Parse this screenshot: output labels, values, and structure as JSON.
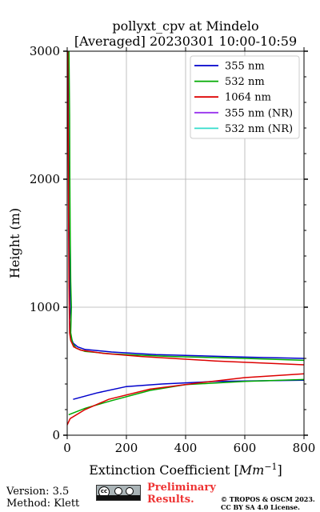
{
  "chart_data": {
    "type": "line",
    "title": "pollyxt_cpv at Mindelo",
    "subtitle": "[Averaged] 20230301 10:00-10:59",
    "xlabel": "Extinction Coefficient [Mm⁻¹]",
    "xlabel_main": "Extinction Coefficient [",
    "xlabel_unit_base": "Mm",
    "xlabel_unit_exp": "−1",
    "xlabel_close": "]",
    "ylabel": "Height (m)",
    "xlim": [
      0,
      800
    ],
    "ylim": [
      0,
      3000
    ],
    "xticks": [
      0,
      200,
      400,
      600,
      800
    ],
    "yticks": [
      0,
      1000,
      2000,
      3000
    ],
    "grid": true,
    "legend_position": "top-right",
    "series": [
      {
        "name": "355 nm",
        "color": "#0000cc",
        "points": [
          [
            20,
            280
          ],
          [
            100,
            330
          ],
          [
            200,
            380
          ],
          [
            320,
            400
          ],
          [
            500,
            420
          ],
          [
            800,
            430
          ],
          null,
          [
            800,
            600
          ],
          [
            600,
            610
          ],
          [
            300,
            630
          ],
          [
            150,
            650
          ],
          [
            60,
            670
          ],
          [
            35,
            690
          ],
          [
            20,
            720
          ],
          [
            10,
            780
          ],
          [
            8,
            900
          ],
          [
            12,
            1000
          ],
          [
            10,
            1100
          ],
          [
            8,
            1300
          ],
          [
            6,
            1600
          ],
          [
            5,
            2000
          ],
          [
            4,
            2500
          ],
          [
            3,
            3000
          ]
        ]
      },
      {
        "name": "532 nm",
        "color": "#00aa00",
        "points": [
          [
            5,
            160
          ],
          [
            60,
            210
          ],
          [
            150,
            270
          ],
          [
            280,
            350
          ],
          [
            400,
            395
          ],
          [
            600,
            420
          ],
          [
            800,
            435
          ],
          null,
          [
            800,
            585
          ],
          [
            600,
            600
          ],
          [
            350,
            615
          ],
          [
            150,
            635
          ],
          [
            60,
            655
          ],
          [
            30,
            680
          ],
          [
            18,
            720
          ],
          [
            12,
            800
          ],
          [
            14,
            1000
          ],
          [
            12,
            1200
          ],
          [
            10,
            1600
          ],
          [
            9,
            2000
          ],
          [
            8,
            2500
          ],
          [
            6,
            3000
          ]
        ]
      },
      {
        "name": "1064 nm",
        "color": "#dd0000",
        "points": [
          [
            0,
            80
          ],
          [
            10,
            130
          ],
          [
            60,
            200
          ],
          [
            140,
            280
          ],
          [
            280,
            360
          ],
          [
            450,
            410
          ],
          [
            600,
            450
          ],
          [
            800,
            480
          ],
          null,
          [
            800,
            550
          ],
          [
            500,
            580
          ],
          [
            250,
            615
          ],
          [
            120,
            640
          ],
          [
            45,
            665
          ],
          [
            22,
            690
          ],
          [
            12,
            740
          ],
          [
            8,
            800
          ],
          [
            7,
            1000
          ],
          [
            6,
            1200
          ],
          [
            5,
            1600
          ],
          [
            4,
            2000
          ],
          [
            3,
            2500
          ],
          [
            2,
            3000
          ]
        ]
      },
      {
        "name": "355 nm (NR)",
        "color": "#9933ee",
        "points": []
      },
      {
        "name": "532 nm (NR)",
        "color": "#33ddcc",
        "points": []
      }
    ]
  },
  "footer": {
    "version": "Version: 3.5",
    "method": "Method: Klett",
    "preliminary_line1": "Preliminary",
    "preliminary_line2": "Results.",
    "copyright_line1": "© TROPOS & OSCM 2023.",
    "copyright_line2": "CC BY SA 4.0 License."
  }
}
